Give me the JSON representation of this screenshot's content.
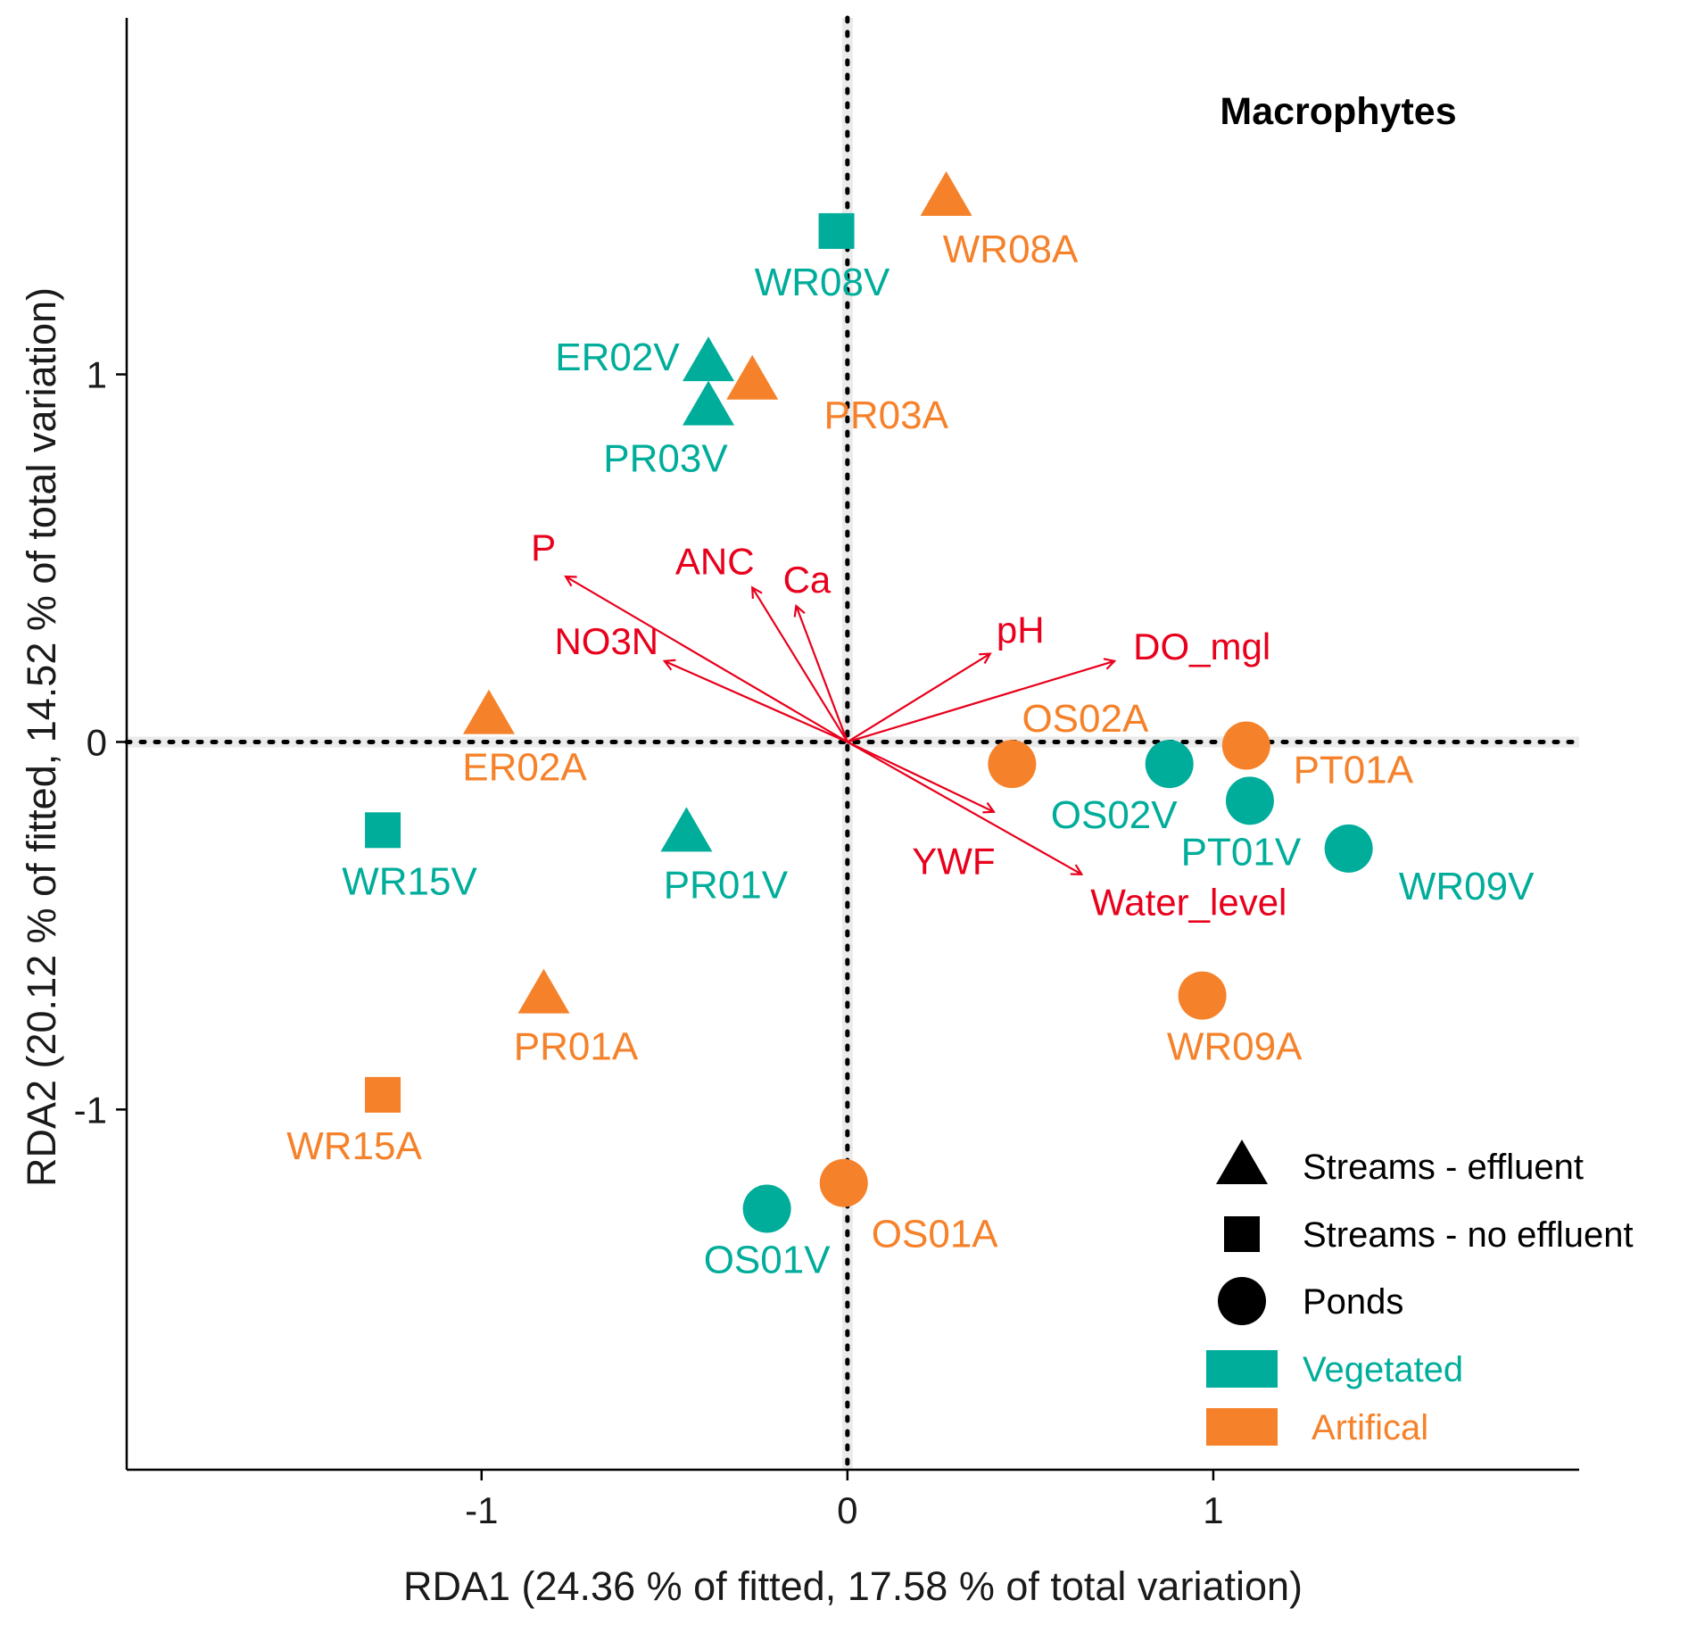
{
  "chart_data": {
    "type": "scatter",
    "title": "Macrophytes",
    "xlabel": "RDA1 (24.36 % of fitted, 17.58 % of total variation)",
    "ylabel": "RDA2 (20.12 % of fitted, 14.52 % of total variation)",
    "xlim": [
      -1.97,
      2.0
    ],
    "ylim": [
      -1.98,
      1.97
    ],
    "xticks": [
      {
        "value": -1,
        "label": "-1"
      },
      {
        "value": 0,
        "label": "0"
      },
      {
        "value": 1,
        "label": "1"
      }
    ],
    "yticks": [
      {
        "value": -1,
        "label": "-1"
      },
      {
        "value": 0,
        "label": "0"
      },
      {
        "value": 1,
        "label": "1"
      }
    ],
    "colors": {
      "Vegetated": "#00AD9A",
      "Artifical": "#F5822A",
      "vector": "#E8001C",
      "reference_line": "#000000"
    },
    "sites": [
      {
        "label": "WR08A",
        "x": 0.27,
        "y": 1.48,
        "shape": "triangle",
        "group": "Artifical"
      },
      {
        "label": "WR08V",
        "x": -0.03,
        "y": 1.39,
        "shape": "square",
        "group": "Vegetated"
      },
      {
        "label": "ER02V",
        "x": -0.38,
        "y": 1.03,
        "shape": "triangle",
        "group": "Vegetated"
      },
      {
        "label": "PR03A",
        "x": -0.26,
        "y": 0.98,
        "shape": "triangle",
        "group": "Artifical"
      },
      {
        "label": "PR03V",
        "x": -0.38,
        "y": 0.91,
        "shape": "triangle",
        "group": "Vegetated"
      },
      {
        "label": "ER02A",
        "x": -0.98,
        "y": 0.07,
        "shape": "triangle",
        "group": "Artifical"
      },
      {
        "label": "WR15V",
        "x": -1.27,
        "y": -0.24,
        "shape": "square",
        "group": "Vegetated"
      },
      {
        "label": "PR01V",
        "x": -0.44,
        "y": -0.25,
        "shape": "triangle",
        "group": "Vegetated"
      },
      {
        "label": "PR01A",
        "x": -0.83,
        "y": -0.69,
        "shape": "triangle",
        "group": "Artifical"
      },
      {
        "label": "WR15A",
        "x": -1.27,
        "y": -0.96,
        "shape": "square",
        "group": "Artifical"
      },
      {
        "label": "OS02A",
        "x": 0.45,
        "y": -0.06,
        "shape": "circle",
        "group": "Artifical"
      },
      {
        "label": "OS02V",
        "x": 0.88,
        "y": -0.06,
        "shape": "circle",
        "group": "Vegetated"
      },
      {
        "label": "PT01A",
        "x": 1.09,
        "y": -0.01,
        "shape": "circle",
        "group": "Artifical"
      },
      {
        "label": "PT01V",
        "x": 1.1,
        "y": -0.16,
        "shape": "circle",
        "group": "Vegetated"
      },
      {
        "label": "WR09V",
        "x": 1.37,
        "y": -0.29,
        "shape": "circle",
        "group": "Vegetated"
      },
      {
        "label": "WR09A",
        "x": 0.97,
        "y": -0.69,
        "shape": "circle",
        "group": "Artifical"
      },
      {
        "label": "OS01V",
        "x": -0.22,
        "y": -1.27,
        "shape": "circle",
        "group": "Vegetated"
      },
      {
        "label": "OS01A",
        "x": -0.01,
        "y": -1.2,
        "shape": "circle",
        "group": "Artifical"
      }
    ],
    "vectors": [
      {
        "label": "P",
        "x": -0.77,
        "y": 0.45
      },
      {
        "label": "ANC",
        "x": -0.26,
        "y": 0.42
      },
      {
        "label": "Ca",
        "x": -0.14,
        "y": 0.37
      },
      {
        "label": "NO3N",
        "x": -0.5,
        "y": 0.22
      },
      {
        "label": "pH",
        "x": 0.39,
        "y": 0.24
      },
      {
        "label": "DO_mgl",
        "x": 0.73,
        "y": 0.22
      },
      {
        "label": "YWF",
        "x": 0.4,
        "y": -0.19
      },
      {
        "label": "Water_level",
        "x": 0.64,
        "y": -0.36
      }
    ],
    "legend": {
      "position": "bottom-right",
      "shapes": [
        {
          "shape": "triangle",
          "label": "Streams - effluent"
        },
        {
          "shape": "square",
          "label": "Streams - no effluent"
        },
        {
          "shape": "circle",
          "label": "Ponds"
        }
      ],
      "groups": [
        {
          "group": "Vegetated",
          "label": "Vegetated"
        },
        {
          "group": "Artifical",
          "label": "Artifical"
        }
      ]
    }
  }
}
